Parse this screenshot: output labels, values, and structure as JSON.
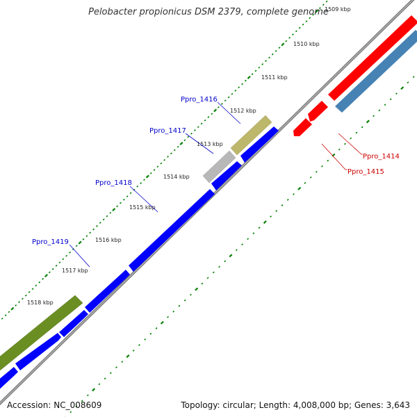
{
  "title": "Pelobacter propionicus DSM 2379, complete genome",
  "footer": {
    "accession": "Accession: NC_008609",
    "summary": "Topology: circular; Length: 4,008,000 bp; Genes: 3,643"
  },
  "colors": {
    "backbone": "#808080",
    "cds_forward": "#0000ff",
    "cds_reverse": "#ff0000",
    "rna": "#4682b4",
    "tick": "#008000",
    "gene_olive": "#6b8e23",
    "gene_khaki": "#bdb76b",
    "gene_gray": "#b0b0b0",
    "label_blue": "#0000cc",
    "label_red": "#cc0000"
  },
  "kbp_labels": [
    "1509 kbp",
    "1510 kbp",
    "1511 kbp",
    "1512 kbp",
    "1513 kbp",
    "1514 kbp",
    "1515 kbp",
    "1516 kbp",
    "1517 kbp",
    "1518 kbp"
  ],
  "gene_labels": [
    {
      "name": "Ppro_1416",
      "color": "blue"
    },
    {
      "name": "Ppro_1417",
      "color": "blue"
    },
    {
      "name": "Ppro_1418",
      "color": "blue"
    },
    {
      "name": "Ppro_1419",
      "color": "blue"
    },
    {
      "name": "Ppro_1414",
      "color": "red"
    },
    {
      "name": "Ppro_1415",
      "color": "red"
    }
  ]
}
